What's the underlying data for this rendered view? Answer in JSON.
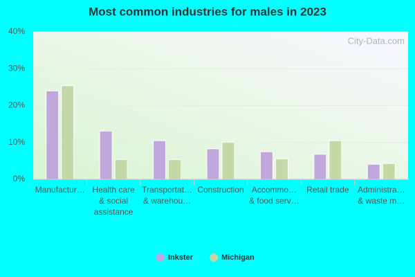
{
  "chart_data": {
    "type": "bar",
    "title": "Most common industries for males in 2023",
    "watermark": "City-Data.com",
    "categories": [
      [
        "Manufactur…"
      ],
      [
        "Health care",
        "& social",
        "assistance"
      ],
      [
        "Transportat…",
        "& warehou…"
      ],
      [
        "Construction"
      ],
      [
        "Accommo…",
        "& food serv…"
      ],
      [
        "Retail trade"
      ],
      [
        "Administra…",
        "& waste m…"
      ]
    ],
    "series": [
      {
        "name": "Inkster",
        "color": "#c0a8dc",
        "values": [
          24.0,
          13.1,
          10.5,
          8.3,
          7.5,
          6.8,
          4.1
        ]
      },
      {
        "name": "Michigan",
        "color": "#c5d9a8",
        "values": [
          25.4,
          5.4,
          5.4,
          10.1,
          5.6,
          10.5,
          4.3
        ]
      }
    ],
    "ylim": [
      0,
      40
    ],
    "yticks": [
      {
        "value": 0,
        "label": "0%"
      },
      {
        "value": 10,
        "label": "10%"
      },
      {
        "value": 20,
        "label": "20%"
      },
      {
        "value": 30,
        "label": "30%"
      },
      {
        "value": 40,
        "label": "40%"
      }
    ],
    "grid": true,
    "legend": "bottom"
  }
}
